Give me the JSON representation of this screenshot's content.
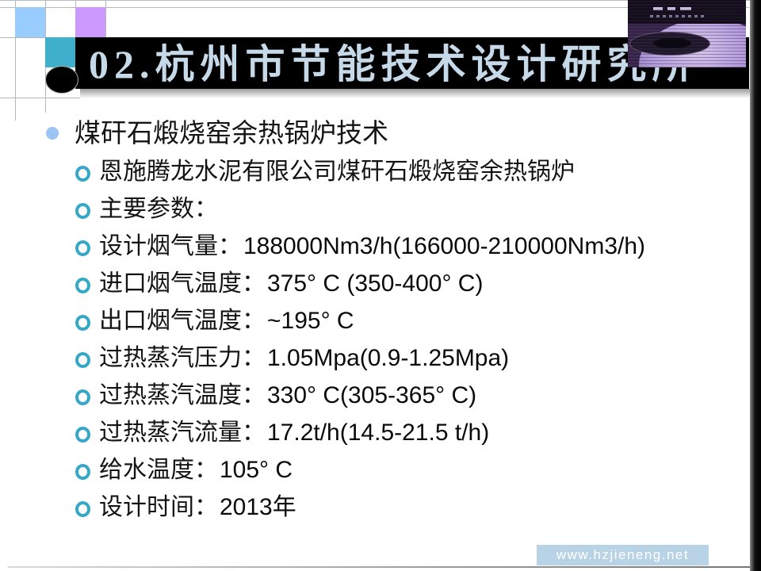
{
  "slide": {
    "title": "02.杭州市节能技术设计研究所",
    "heading": "煤矸石煅烧窑余热锅炉技术",
    "items": [
      {
        "label": "恩施腾龙水泥有限公司煤矸石煅烧窑余热锅炉",
        "value": ""
      },
      {
        "label": "主要参数：",
        "value": ""
      },
      {
        "label": "设计烟气量：",
        "value": "188000Nm3/h(166000-210000Nm3/h)"
      },
      {
        "label": "进口烟气温度：",
        "value": "375° C (350-400° C)"
      },
      {
        "label": "出口烟气温度：",
        "value": "~195° C"
      },
      {
        "label": "过热蒸汽压力：",
        "value": "1.05Mpa(0.9-1.25Mpa)"
      },
      {
        "label": "过热蒸汽温度：",
        "value": "330° C(305-365° C)"
      },
      {
        "label": "过热蒸汽流量：",
        "value": "17.2t/h(14.5-21.5 t/h)"
      },
      {
        "label": "给水温度：",
        "value": "105° C"
      },
      {
        "label": "设计时间：",
        "value": "2013年"
      }
    ],
    "footer_url": "www.hzjieneng.net"
  },
  "icons": {
    "level1_bullet": "filled-circle-bullet",
    "level2_bullet": "hollow-ring-bullet",
    "corner_photo": "cd-player-photo"
  },
  "colors": {
    "title_bar": "#000000",
    "title_text": "#c6d9e8",
    "square_blue": "#99ccff",
    "square_purple": "#cc99ff",
    "square_teal": "#3fb0cb",
    "bullet_dot": "#9cc4f2",
    "ring_bullet": "#35a8c8",
    "footer_bar": "#b9d3e6",
    "body_text": "#141414"
  }
}
